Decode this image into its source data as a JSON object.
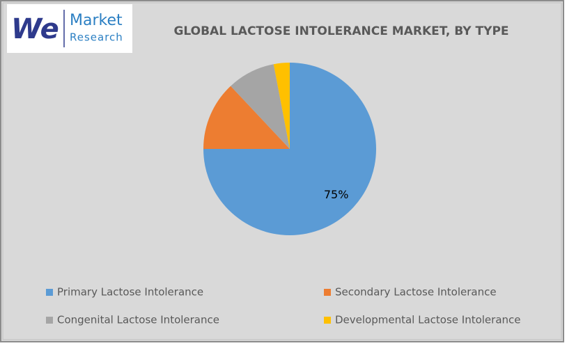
{
  "logo": {
    "mark": "We",
    "line1": "Market",
    "line2": "Research"
  },
  "chart_data": {
    "type": "pie",
    "title": "GLOBAL LACTOSE INTOLERANCE MARKET, BY TYPE",
    "categories": [
      "Primary Lactose Intolerance",
      "Secondary Lactose Intolerance",
      "Congenital Lactose Intolerance",
      "Developmental Lactose Intolerance"
    ],
    "values": [
      75,
      13,
      9,
      3
    ],
    "value_labels": [
      "75%",
      null,
      null,
      null
    ],
    "colors": [
      "#5b9bd5",
      "#ed7d31",
      "#a5a5a5",
      "#ffc000"
    ],
    "legend": "bottom"
  }
}
